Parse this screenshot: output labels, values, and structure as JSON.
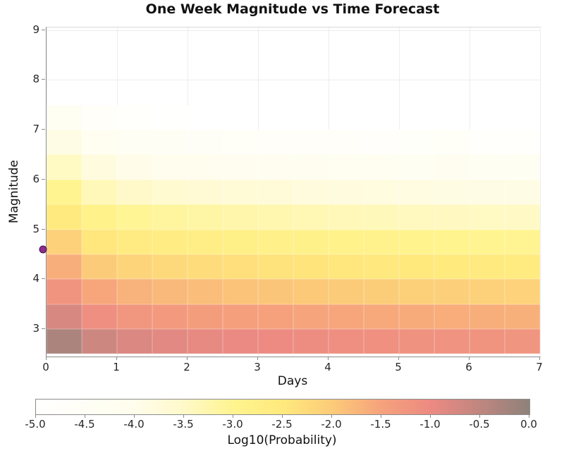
{
  "chart_data": {
    "type": "heatmap",
    "title": "One Week Magnitude vs Time Forecast",
    "xlabel": "Days",
    "ylabel": "Magnitude",
    "xlim": [
      0,
      7
    ],
    "ylim": [
      2.45,
      9.05
    ],
    "x_ticks": [
      0,
      1,
      2,
      3,
      4,
      5,
      6,
      7
    ],
    "y_ticks": [
      3,
      4,
      5,
      6,
      7,
      8,
      9
    ],
    "grid": true,
    "day_bin_edges": [
      0,
      0.5,
      1,
      1.5,
      2,
      2.5,
      3,
      3.5,
      4,
      4.5,
      5,
      5.5,
      6,
      6.5,
      7
    ],
    "magnitude_bin_edges": [
      2.5,
      3.0,
      3.5,
      4.0,
      4.5,
      5.0,
      5.5,
      6.0,
      6.5,
      7.0,
      7.5
    ],
    "values_log10_probability_rows_bottom_to_top": [
      [
        -0.3,
        -0.65,
        -0.8,
        -0.88,
        -0.94,
        -0.99,
        -1.03,
        -1.07,
        -1.1,
        -1.13,
        -1.16,
        -1.18,
        -1.2,
        -1.22
      ],
      [
        -0.75,
        -1.1,
        -1.25,
        -1.33,
        -1.39,
        -1.44,
        -1.48,
        -1.52,
        -1.55,
        -1.58,
        -1.61,
        -1.63,
        -1.65,
        -1.67
      ],
      [
        -1.2,
        -1.55,
        -1.7,
        -1.78,
        -1.84,
        -1.89,
        -1.93,
        -1.97,
        -2.0,
        -2.03,
        -2.06,
        -2.08,
        -2.1,
        -2.12
      ],
      [
        -1.65,
        -2.0,
        -2.15,
        -2.23,
        -2.29,
        -2.34,
        -2.38,
        -2.42,
        -2.45,
        -2.48,
        -2.51,
        -2.53,
        -2.55,
        -2.57
      ],
      [
        -2.1,
        -2.45,
        -2.6,
        -2.68,
        -2.74,
        -2.79,
        -2.83,
        -2.87,
        -2.9,
        -2.93,
        -2.96,
        -2.98,
        -3.0,
        -3.02
      ],
      [
        -2.55,
        -2.9,
        -3.05,
        -3.13,
        -3.19,
        -3.24,
        -3.28,
        -3.32,
        -3.35,
        -3.38,
        -3.41,
        -3.43,
        -3.45,
        -3.47
      ],
      [
        -3.0,
        -3.35,
        -3.5,
        -3.58,
        -3.64,
        -3.69,
        -3.73,
        -3.77,
        -3.8,
        -3.83,
        -3.86,
        -3.88,
        -3.9,
        -3.92
      ],
      [
        -3.45,
        -3.8,
        -3.95,
        -4.03,
        -4.09,
        -4.14,
        -4.18,
        -4.22,
        -4.25,
        -4.28,
        -4.31,
        -4.15,
        -4.35,
        -4.37
      ],
      [
        -3.9,
        -4.25,
        -4.4,
        -4.48,
        -4.54,
        -4.59,
        -4.63,
        -4.67,
        -4.7,
        -4.73,
        -4.76,
        -4.6,
        -4.8,
        -4.82
      ],
      [
        -4.35,
        -4.7,
        -4.85,
        -4.93,
        -4.99,
        -5.04,
        -5.08,
        -5.12,
        -5.15,
        -5.18,
        -5.21,
        -5.23,
        -5.25,
        -5.27
      ]
    ],
    "marker": {
      "name": "mainshock-marker",
      "day": -0.05,
      "magnitude": 4.6,
      "color": "#8b2d8f"
    },
    "colorbar": {
      "label": "Log10(Probability)",
      "min": -5,
      "max": 0,
      "ticks": [
        -5.0,
        -4.5,
        -4.0,
        -3.5,
        -3.0,
        -2.5,
        -2.0,
        -1.5,
        -1.0,
        -0.5,
        0.0
      ],
      "stops": [
        {
          "value": -5.0,
          "color": "#ffffff"
        },
        {
          "value": -4.0,
          "color": "#fffdec"
        },
        {
          "value": -3.5,
          "color": "#fff9c9"
        },
        {
          "value": -3.0,
          "color": "#fff48f"
        },
        {
          "value": -2.5,
          "color": "#ffe97d"
        },
        {
          "value": -2.0,
          "color": "#fccb79"
        },
        {
          "value": -1.5,
          "color": "#f6a27c"
        },
        {
          "value": -1.0,
          "color": "#ec8a82"
        },
        {
          "value": -0.5,
          "color": "#bf8680"
        },
        {
          "value": 0.0,
          "color": "#8e827a"
        }
      ]
    }
  }
}
